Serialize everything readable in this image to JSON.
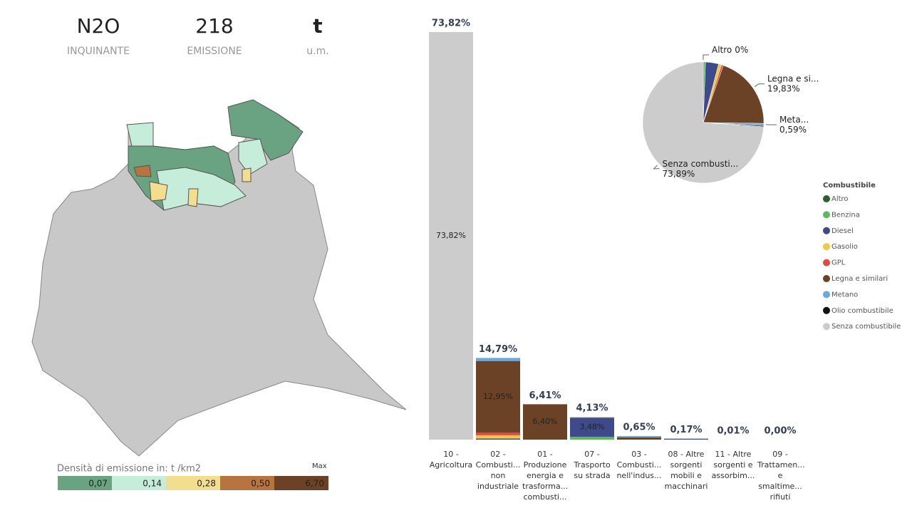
{
  "kpis": [
    {
      "value": "N2O",
      "label": "INQUINANTE"
    },
    {
      "value": "218",
      "label": "EMISSIONE"
    },
    {
      "value": "t",
      "label": "u.m."
    }
  ],
  "map_legend": {
    "title": "Densità di emissione in:  t /km2",
    "max_label": "Max",
    "classes": [
      {
        "label": "0,07",
        "color": "#6aa381"
      },
      {
        "label": "0,14",
        "color": "#c6ecda"
      },
      {
        "label": "0,28",
        "color": "#f3de90"
      },
      {
        "label": "0,50",
        "color": "#b87440"
      },
      {
        "label": "6,70",
        "color": "#6b4226"
      }
    ]
  },
  "chart_data": [
    {
      "type": "stacked_bar",
      "categories": [
        "10 - Agricoltura",
        "02 - Combusti... non industriale",
        "01 - Produzione energia e trasforma... combusti...",
        "07 - Trasporto su strada",
        "03 - Combusti... nell'indus...",
        "08 - Altre sorgenti mobili e macchinari",
        "11 - Altre sorgenti e assorbim...",
        "09 - Trattamen... e smaltime... rifiuti"
      ],
      "totals": [
        73.82,
        14.79,
        6.41,
        4.13,
        0.65,
        0.17,
        0.01,
        0.0
      ],
      "totals_labels": [
        "73,82%",
        "14,79%",
        "6,41%",
        "4,13%",
        "0,65%",
        "0,17%",
        "0,01%",
        "0,00%"
      ],
      "series": [
        {
          "name": "Altro",
          "color": "#2e5e2e",
          "values": [
            null,
            null,
            null,
            null,
            null,
            null,
            null,
            null
          ]
        },
        {
          "name": "Benzina",
          "color": "#5fb85f",
          "values": [
            null,
            null,
            null,
            0.5,
            null,
            null,
            null,
            null
          ]
        },
        {
          "name": "Diesel",
          "color": "#3e4a8a",
          "values": [
            null,
            0.19,
            null,
            3.48,
            null,
            0.17,
            null,
            null
          ],
          "value_labels": [
            null,
            null,
            null,
            "3,48%",
            null,
            null,
            null,
            null
          ]
        },
        {
          "name": "Gasolio",
          "color": "#f2c744",
          "values": [
            null,
            0.6,
            null,
            0.15,
            null,
            null,
            null,
            null
          ]
        },
        {
          "name": "GPL",
          "color": "#e04b3c",
          "values": [
            null,
            0.5,
            null,
            null,
            null,
            null,
            null,
            null
          ]
        },
        {
          "name": "Legna e similari",
          "color": "#6b4226",
          "values": [
            null,
            12.95,
            6.4,
            null,
            0.4,
            null,
            null,
            null
          ],
          "value_labels": [
            null,
            "12,95%",
            "6,40%",
            null,
            null,
            null,
            null,
            null
          ]
        },
        {
          "name": "Metano",
          "color": "#6aa8e0",
          "values": [
            null,
            0.55,
            0.01,
            null,
            0.25,
            null,
            null,
            null
          ]
        },
        {
          "name": "Olio combustibile",
          "color": "#111111",
          "values": [
            null,
            null,
            null,
            null,
            null,
            null,
            null,
            null
          ]
        },
        {
          "name": "Senza combustibile",
          "color": "#cccccc",
          "values": [
            73.82,
            null,
            null,
            null,
            null,
            null,
            0.01,
            0.0
          ],
          "value_labels": [
            "73,82%",
            null,
            null,
            null,
            null,
            null,
            null,
            null
          ]
        }
      ]
    },
    {
      "type": "pie",
      "legend_title": "Combustibile",
      "categories": [
        "Altro",
        "Benzina",
        "Diesel",
        "Gasolio",
        "GPL",
        "Legna e similari",
        "Metano",
        "Olio combustibile",
        "Senza combustibile"
      ],
      "labels": [
        "Altro",
        null,
        null,
        null,
        null,
        "Legna e si...",
        "Meta...",
        null,
        "Senza combusti..."
      ],
      "values": [
        0,
        0.6,
        3.5,
        0.8,
        0.5,
        19.83,
        0.59,
        0.29,
        73.89
      ],
      "value_labels": [
        "0%",
        null,
        null,
        null,
        null,
        "19,83%",
        "0,59%",
        null,
        "73,89%"
      ],
      "colors": [
        "#2e5e2e",
        "#5fb85f",
        "#3e4a8a",
        "#f2c744",
        "#e04b3c",
        "#6b4226",
        "#6aa8e0",
        "#111111",
        "#cccccc"
      ]
    }
  ]
}
